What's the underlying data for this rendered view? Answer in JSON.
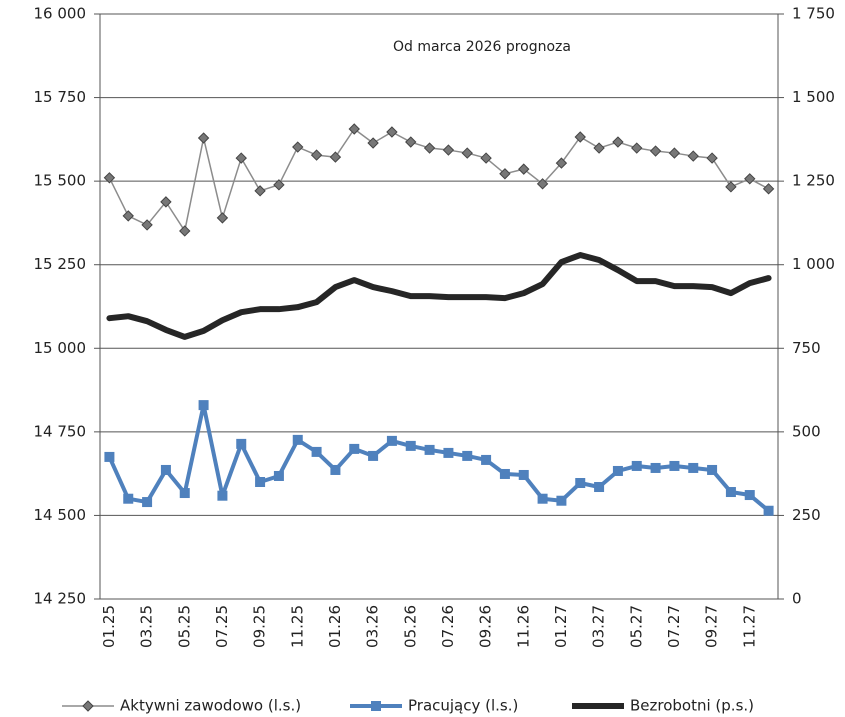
{
  "chart_data": {
    "type": "line",
    "annotation": "Od marca 2026 prognoza",
    "categories": [
      "01.25",
      null,
      "03.25",
      null,
      "05.25",
      null,
      "07.25",
      null,
      "09.25",
      null,
      "11.25",
      null,
      "01.26",
      null,
      "03.26",
      null,
      "05.26",
      null,
      "07.26",
      null,
      "09.26",
      null,
      "11.26",
      null,
      "01.27",
      null,
      "03.27",
      null,
      "05.27",
      null,
      "07.27",
      null,
      "09.27",
      null,
      "11.27",
      null
    ],
    "series": [
      {
        "name": "Aktywni zawodowo (l.s.)",
        "color": "#8c8c8c",
        "marker": "diamond",
        "axis": "y",
        "values": [
          15510,
          15396,
          15369,
          15438,
          15351,
          15629,
          15390,
          15569,
          15471,
          15489,
          15602,
          15578,
          15572,
          15656,
          15614,
          15647,
          15617,
          15599,
          15593,
          15584,
          15569,
          15522,
          15536,
          15492,
          15554,
          15632,
          15599,
          15617,
          15599,
          15590,
          15584,
          15575,
          15569,
          15483,
          15507,
          15477
        ]
      },
      {
        "name": "Pracujący (l.s.)",
        "color": "#4f81bd",
        "marker": "square",
        "axis": "y",
        "values": [
          14675,
          14550,
          14540,
          14636,
          14567,
          14830,
          14559,
          14714,
          14600,
          14618,
          14726,
          14690,
          14636,
          14699,
          14678,
          14723,
          14708,
          14696,
          14687,
          14678,
          14666,
          14624,
          14621,
          14550,
          14544,
          14597,
          14585,
          14633,
          14648,
          14642,
          14648,
          14642,
          14636,
          14570,
          14561,
          14514
        ]
      },
      {
        "name": "Bezrobotni (p.s.)",
        "color": "#262626",
        "marker": null,
        "axis": "y2",
        "values": [
          840,
          846,
          831,
          805,
          784,
          802,
          834,
          858,
          867,
          867,
          873,
          888,
          933,
          954,
          933,
          921,
          906,
          906,
          903,
          903,
          903,
          900,
          915,
          942,
          1008,
          1029,
          1014,
          984,
          951,
          951,
          936,
          936,
          933,
          915,
          945,
          960
        ]
      }
    ],
    "ylim": [
      14250,
      16000
    ],
    "yticks": [
      {
        "value": 14250,
        "label": "14 250"
      },
      {
        "value": 14500,
        "label": "14 500"
      },
      {
        "value": 14750,
        "label": "14 750"
      },
      {
        "value": 15000,
        "label": "15 000"
      },
      {
        "value": 15250,
        "label": "15 250"
      },
      {
        "value": 15500,
        "label": "15 500"
      },
      {
        "value": 15750,
        "label": "15 750"
      },
      {
        "value": 16000,
        "label": "16 000"
      }
    ],
    "y2lim": [
      0,
      1750
    ],
    "y2ticks": [
      0,
      250,
      500,
      750,
      {
        "value": 1000,
        "label": "1 000"
      },
      {
        "value": 1250,
        "label": "1 250"
      },
      {
        "value": 1500,
        "label": "1 500"
      },
      {
        "value": 1750,
        "label": "1 750"
      }
    ],
    "grid": true,
    "legend": "bottom"
  }
}
